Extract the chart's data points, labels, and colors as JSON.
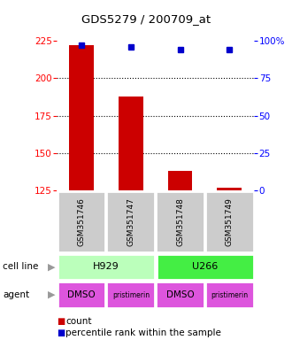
{
  "title": "GDS5279 / 200709_at",
  "samples": [
    "GSM351746",
    "GSM351747",
    "GSM351748",
    "GSM351749"
  ],
  "bar_values": [
    222,
    188,
    138,
    127
  ],
  "percentile_values": [
    97,
    96,
    94,
    94
  ],
  "bar_color": "#cc0000",
  "dot_color": "#0000cc",
  "ylim_left": [
    125,
    225
  ],
  "ylim_right": [
    0,
    100
  ],
  "yticks_left": [
    125,
    150,
    175,
    200,
    225
  ],
  "yticks_right": [
    0,
    25,
    50,
    75,
    100
  ],
  "ytick_labels_right": [
    "0",
    "25",
    "50",
    "75",
    "100%"
  ],
  "grid_values": [
    200,
    175,
    150
  ],
  "cell_line_labels": [
    "H929",
    "U266"
  ],
  "cell_line_colors": [
    "#bbffbb",
    "#44ee44"
  ],
  "agent_labels": [
    "DMSO",
    "pristimerin",
    "DMSO",
    "pristimerin"
  ],
  "agent_color": "#dd55dd",
  "sample_box_color": "#cccccc",
  "legend_count_color": "#cc0000",
  "legend_dot_color": "#0000cc",
  "bar_width": 0.5
}
